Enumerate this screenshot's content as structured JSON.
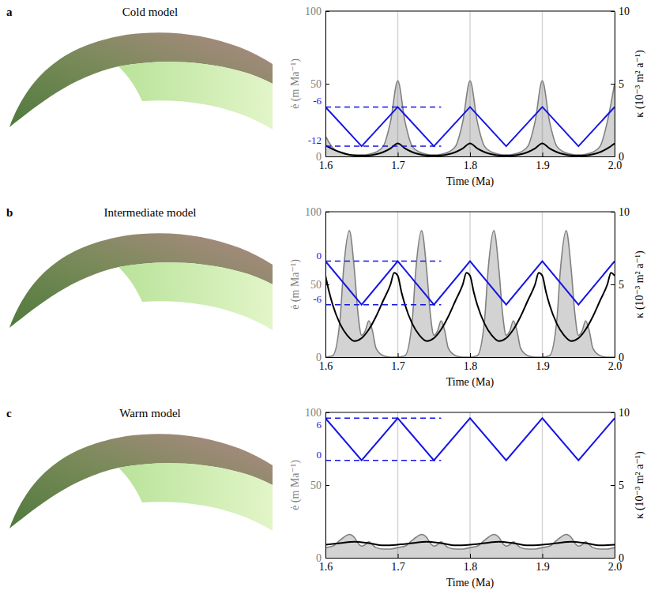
{
  "chart_data": [
    {
      "type": "line",
      "panel_label": "a",
      "title": "Cold model",
      "xlabel": "Time (Ma)",
      "ylabel": "ė (m Ma⁻¹)",
      "y2label": "κ (10⁻³ m² a⁻¹)",
      "xlim": [
        1.6,
        2.0
      ],
      "xticks": [
        1.6,
        1.7,
        1.8,
        1.9,
        {
          "value": 2.0,
          "label": "2.0"
        }
      ],
      "ylim": [
        0,
        100
      ],
      "yticks": [
        0,
        50,
        100
      ],
      "y2lim": [
        0,
        10
      ],
      "y2ticks": [
        0,
        5,
        10
      ],
      "grid": "x",
      "series": [
        {
          "type": "area",
          "color": "#808080",
          "x": [
            1.6,
            1.61,
            1.62,
            1.63,
            1.64,
            1.65,
            1.66,
            1.67,
            1.68,
            1.69,
            1.7,
            1.71,
            1.72,
            1.73,
            1.74,
            1.75,
            1.76,
            1.77,
            1.78,
            1.79,
            1.8,
            1.81,
            1.82,
            1.83,
            1.84,
            1.85,
            1.86,
            1.87,
            1.88,
            1.89,
            1.9,
            1.91,
            1.92,
            1.93,
            1.94,
            1.95,
            1.96,
            1.97,
            1.98,
            1.99,
            2.0
          ],
          "values": [
            14,
            6,
            3,
            1.5,
            1,
            1,
            1.5,
            3,
            7,
            24,
            52,
            24,
            7,
            3,
            1.5,
            1,
            1.5,
            3,
            7,
            24,
            52,
            24,
            7,
            3,
            1.5,
            1,
            1.5,
            3,
            7,
            24,
            52,
            24,
            7,
            3,
            1.5,
            1,
            1.5,
            3,
            7,
            24,
            50
          ]
        },
        {
          "type": "line",
          "color": "#000000",
          "axis": "y2",
          "x": [
            1.6,
            1.61,
            1.62,
            1.63,
            1.64,
            1.65,
            1.66,
            1.67,
            1.68,
            1.69,
            1.7,
            1.71,
            1.72,
            1.73,
            1.74,
            1.75,
            1.76,
            1.77,
            1.78,
            1.79,
            1.8,
            1.81,
            1.82,
            1.83,
            1.84,
            1.85,
            1.86,
            1.87,
            1.88,
            1.89,
            1.9,
            1.91,
            1.92,
            1.93,
            1.94,
            1.95,
            1.96,
            1.97,
            1.98,
            1.99,
            2.0
          ],
          "values": [
            0.75,
            0.5,
            0.3,
            0.15,
            0.07,
            0.05,
            0.07,
            0.15,
            0.3,
            0.55,
            0.9,
            0.55,
            0.3,
            0.15,
            0.07,
            0.05,
            0.07,
            0.15,
            0.3,
            0.55,
            0.9,
            0.55,
            0.3,
            0.15,
            0.07,
            0.05,
            0.07,
            0.15,
            0.3,
            0.55,
            0.9,
            0.55,
            0.3,
            0.15,
            0.07,
            0.05,
            0.07,
            0.15,
            0.3,
            0.55,
            0.9
          ]
        },
        {
          "type": "line",
          "color": "#1414e6",
          "x": [
            1.6,
            1.65,
            1.7,
            1.75,
            1.8,
            1.85,
            1.9,
            1.95,
            2.0
          ],
          "values": [
            34,
            7,
            34,
            7,
            34,
            7,
            34,
            7,
            34
          ]
        }
      ],
      "annotations": [
        {
          "text": "-6",
          "y": 34,
          "x": [
            1.6,
            1.76
          ],
          "color": "#1414e6",
          "line_style": "dashed"
        },
        {
          "text": "-12",
          "y": 7,
          "x": [
            1.6,
            1.76
          ],
          "color": "#1414e6",
          "line_style": "dashed"
        }
      ]
    },
    {
      "type": "line",
      "panel_label": "b",
      "title": "Intermediate model",
      "xlabel": "Time (Ma)",
      "ylabel": "ė (m Ma⁻¹)",
      "y2label": "κ (10⁻³ m² a⁻¹)",
      "xlim": [
        1.6,
        2.0
      ],
      "xticks": [
        1.6,
        1.7,
        1.8,
        1.9,
        {
          "value": 2.0,
          "label": "2.0"
        }
      ],
      "ylim": [
        0,
        100
      ],
      "yticks": [
        0,
        50,
        100
      ],
      "y2lim": [
        0,
        10
      ],
      "y2ticks": [
        0,
        5,
        10
      ],
      "grid": "x",
      "series": [
        {
          "type": "area",
          "color": "#808080",
          "x": [
            1.6,
            1.61,
            1.62,
            1.625,
            1.633,
            1.64,
            1.645,
            1.65,
            1.655,
            1.66,
            1.665,
            1.67,
            1.68,
            1.69,
            1.7,
            1.71,
            1.72,
            1.725,
            1.733,
            1.74,
            1.745,
            1.75,
            1.755,
            1.76,
            1.765,
            1.77,
            1.78,
            1.79,
            1.8,
            1.81,
            1.82,
            1.825,
            1.833,
            1.84,
            1.845,
            1.85,
            1.855,
            1.86,
            1.865,
            1.87,
            1.88,
            1.89,
            1.9,
            1.91,
            1.92,
            1.925,
            1.933,
            1.94,
            1.945,
            1.95,
            1.955,
            1.96,
            1.965,
            1.97,
            1.98,
            1.99,
            2.0
          ],
          "values": [
            0,
            1,
            25,
            60,
            87,
            60,
            30,
            15,
            18,
            25,
            18,
            6,
            1,
            0,
            0,
            1,
            25,
            60,
            87,
            60,
            30,
            15,
            18,
            25,
            18,
            6,
            1,
            0,
            0,
            1,
            25,
            60,
            87,
            60,
            30,
            15,
            18,
            25,
            18,
            6,
            1,
            0,
            0,
            1,
            25,
            60,
            87,
            60,
            30,
            15,
            18,
            25,
            18,
            6,
            1,
            0,
            0
          ]
        },
        {
          "type": "line",
          "color": "#000000",
          "axis": "y2",
          "x": [
            1.6,
            1.605,
            1.61,
            1.62,
            1.63,
            1.64,
            1.65,
            1.66,
            1.67,
            1.68,
            1.69,
            1.695,
            1.7,
            1.705,
            1.71,
            1.72,
            1.73,
            1.74,
            1.75,
            1.76,
            1.77,
            1.78,
            1.79,
            1.795,
            1.8,
            1.805,
            1.81,
            1.82,
            1.83,
            1.84,
            1.85,
            1.86,
            1.87,
            1.88,
            1.89,
            1.895,
            1.9,
            1.905,
            1.91,
            1.92,
            1.93,
            1.94,
            1.95,
            1.96,
            1.97,
            1.98,
            1.99,
            1.995,
            2.0
          ],
          "values": [
            5.6,
            4.5,
            3.6,
            2.3,
            1.5,
            1.1,
            1.3,
            1.9,
            2.8,
            3.9,
            5,
            5.8,
            5.6,
            4.5,
            3.6,
            2.3,
            1.5,
            1.1,
            1.3,
            1.9,
            2.8,
            3.9,
            5,
            5.8,
            5.6,
            4.5,
            3.6,
            2.3,
            1.5,
            1.1,
            1.3,
            1.9,
            2.8,
            3.9,
            5,
            5.8,
            5.6,
            4.5,
            3.6,
            2.3,
            1.5,
            1.1,
            1.3,
            1.9,
            2.8,
            3.9,
            5,
            5.8,
            5.6
          ]
        },
        {
          "type": "line",
          "color": "#1414e6",
          "x": [
            1.6,
            1.65,
            1.7,
            1.75,
            1.8,
            1.85,
            1.9,
            1.95,
            2.0
          ],
          "values": [
            66,
            36,
            66,
            36,
            66,
            36,
            66,
            36,
            66
          ]
        }
      ],
      "annotations": [
        {
          "text": "0",
          "y": 66,
          "x": [
            1.6,
            1.76
          ],
          "color": "#1414e6",
          "line_style": "dashed"
        },
        {
          "text": "-6",
          "y": 36,
          "x": [
            1.6,
            1.76
          ],
          "color": "#1414e6",
          "line_style": "dashed"
        }
      ]
    },
    {
      "type": "line",
      "panel_label": "c",
      "title": "Warm model",
      "xlabel": "Time (Ma)",
      "ylabel": "ė (m Ma⁻¹)",
      "y2label": "κ (10⁻³ m² a⁻¹)",
      "xlim": [
        1.6,
        2.0
      ],
      "xticks": [
        1.6,
        1.7,
        1.8,
        1.9,
        {
          "value": 2.0,
          "label": "2.0"
        }
      ],
      "ylim": [
        0,
        100
      ],
      "yticks": [
        0,
        50,
        100
      ],
      "y2lim": [
        0,
        10
      ],
      "y2ticks": [
        0,
        5,
        10
      ],
      "grid": "x",
      "series": [
        {
          "type": "area",
          "color": "#808080",
          "x": [
            1.6,
            1.61,
            1.62,
            1.625,
            1.633,
            1.64,
            1.645,
            1.65,
            1.655,
            1.66,
            1.665,
            1.67,
            1.68,
            1.69,
            1.7,
            1.71,
            1.72,
            1.725,
            1.733,
            1.74,
            1.745,
            1.75,
            1.755,
            1.76,
            1.765,
            1.77,
            1.78,
            1.79,
            1.8,
            1.81,
            1.82,
            1.825,
            1.833,
            1.84,
            1.845,
            1.85,
            1.855,
            1.86,
            1.865,
            1.87,
            1.88,
            1.89,
            1.9,
            1.91,
            1.92,
            1.925,
            1.933,
            1.94,
            1.945,
            1.95,
            1.955,
            1.96,
            1.965,
            1.97,
            1.98,
            1.99,
            2.0
          ],
          "values": [
            7,
            8,
            12,
            14,
            16,
            14,
            10,
            8,
            9,
            11,
            9,
            7,
            6,
            6,
            7,
            8,
            12,
            14,
            16,
            14,
            10,
            8,
            9,
            11,
            9,
            7,
            6,
            6,
            7,
            8,
            12,
            14,
            16,
            14,
            10,
            8,
            9,
            11,
            9,
            7,
            6,
            6,
            7,
            8,
            12,
            14,
            16,
            14,
            10,
            8,
            9,
            11,
            9,
            7,
            6,
            6,
            7
          ]
        },
        {
          "type": "line",
          "color": "#000000",
          "axis": "y2",
          "x": [
            1.6,
            1.62,
            1.64,
            1.66,
            1.68,
            1.7,
            1.72,
            1.74,
            1.76,
            1.78,
            1.8,
            1.82,
            1.84,
            1.86,
            1.88,
            1.9,
            1.92,
            1.94,
            1.96,
            1.98,
            2.0
          ],
          "values": [
            0.9,
            1,
            1.1,
            1,
            0.85,
            0.9,
            1,
            1.1,
            1,
            0.85,
            0.9,
            1,
            1.1,
            1,
            0.85,
            0.9,
            1,
            1.1,
            1,
            0.85,
            0.9
          ]
        },
        {
          "type": "line",
          "color": "#1414e6",
          "x": [
            1.6,
            1.65,
            1.7,
            1.75,
            1.8,
            1.85,
            1.9,
            1.95,
            2.0
          ],
          "values": [
            96,
            67,
            96,
            67,
            96,
            67,
            96,
            67,
            96
          ]
        }
      ],
      "annotations": [
        {
          "text": "6",
          "y": 96,
          "x": [
            1.6,
            1.76
          ],
          "color": "#1414e6",
          "line_style": "dashed"
        },
        {
          "text": "0",
          "y": 67,
          "x": [
            1.6,
            1.76
          ],
          "color": "#1414e6",
          "line_style": "dashed"
        }
      ]
    }
  ]
}
